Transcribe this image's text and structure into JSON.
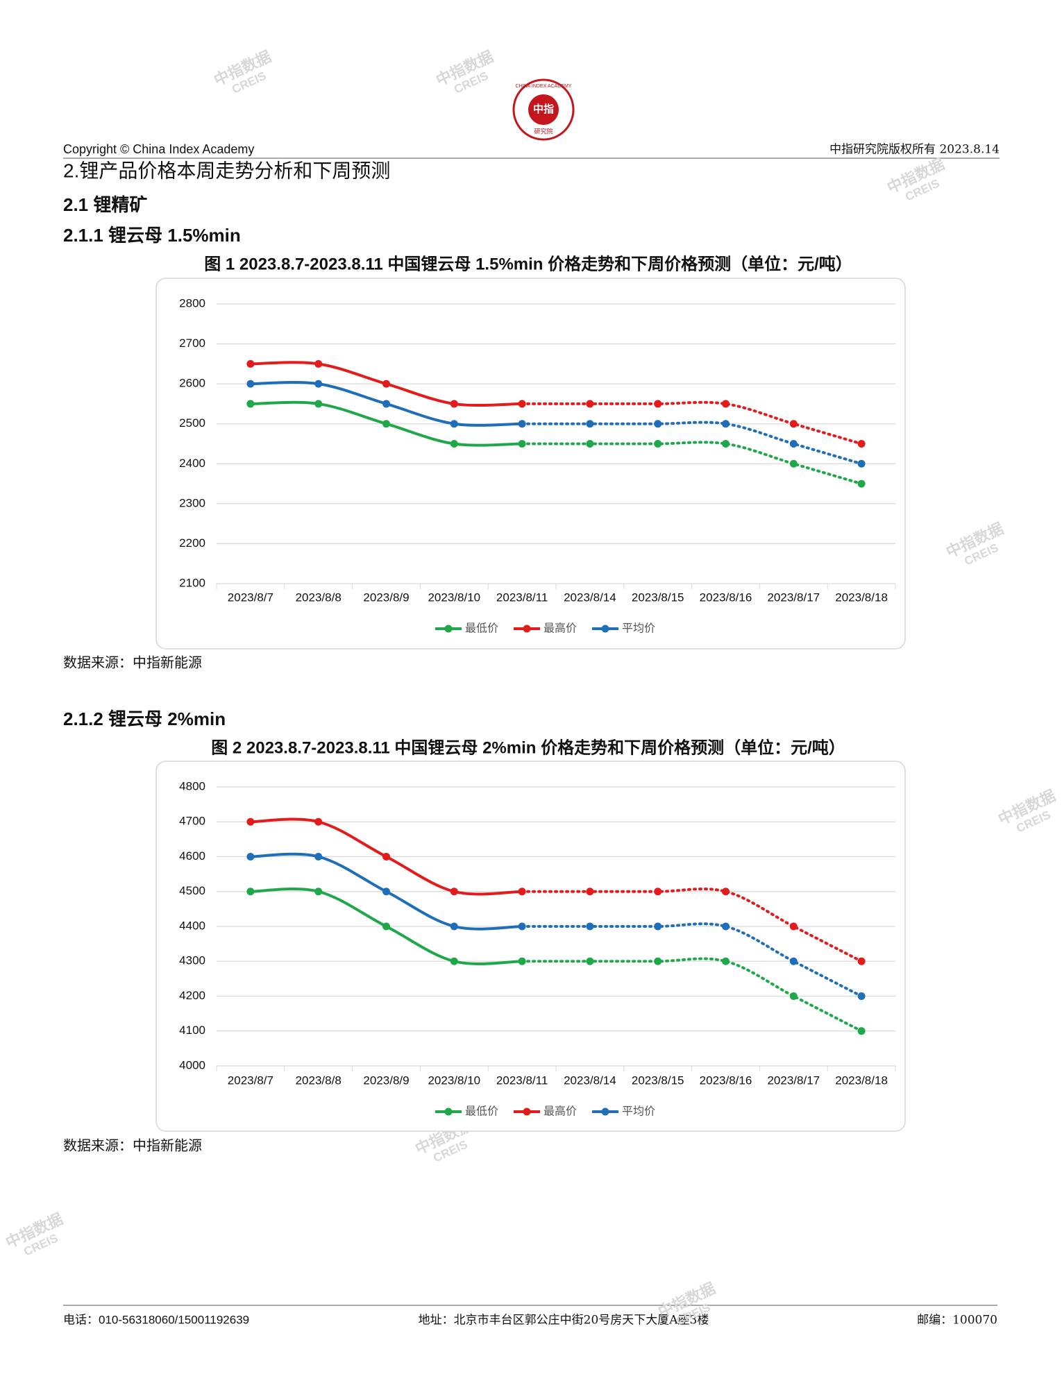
{
  "header": {
    "copyright": "Copyright © China Index Academy",
    "rights": "中指研究院版权所有 2023.8.14"
  },
  "logo": {
    "center": "中指",
    "ring": "CHINA INDEX ACADEMY",
    "bottom": "研究院"
  },
  "watermark": {
    "text": "中指数据",
    "sub": "CREIS"
  },
  "sections": {
    "h2": "2.锂产品价格本周走势分析和下周预测",
    "h21": "2.1 锂精矿",
    "h211": "2.1.1 锂云母 1.5%min",
    "h212": "2.1.2 锂云母 2%min"
  },
  "chart_data": [
    {
      "type": "line",
      "title": "图 1 2023.8.7-2023.8.11 中国锂云母 1.5%min 价格走势和下周价格预测（单位：元/吨）",
      "categories": [
        "2023/8/7",
        "2023/8/8",
        "2023/8/9",
        "2023/8/10",
        "2023/8/11",
        "2023/8/14",
        "2023/8/15",
        "2023/8/16",
        "2023/8/17",
        "2023/8/18"
      ],
      "series": [
        {
          "name": "最低价",
          "color": "#1fa84a",
          "values": [
            2550,
            2550,
            2500,
            2450,
            2450,
            2450,
            2450,
            2450,
            2400,
            2350
          ]
        },
        {
          "name": "最高价",
          "color": "#e31b1b",
          "values": [
            2650,
            2650,
            2600,
            2550,
            2550,
            2550,
            2550,
            2550,
            2500,
            2450
          ]
        },
        {
          "name": "平均价",
          "color": "#1f6fb8",
          "values": [
            2600,
            2600,
            2550,
            2500,
            2500,
            2500,
            2500,
            2500,
            2450,
            2400
          ]
        }
      ],
      "dotted_from_index": 4,
      "ylim": [
        2100,
        2800
      ],
      "yticks": [
        2100,
        2200,
        2300,
        2400,
        2500,
        2600,
        2700,
        2800
      ],
      "grid": true,
      "legend": "bottom",
      "source": "数据来源：中指新能源"
    },
    {
      "type": "line",
      "title": "图 2 2023.8.7-2023.8.11 中国锂云母 2%min 价格走势和下周价格预测（单位：元/吨）",
      "categories": [
        "2023/8/7",
        "2023/8/8",
        "2023/8/9",
        "2023/8/10",
        "2023/8/11",
        "2023/8/14",
        "2023/8/15",
        "2023/8/16",
        "2023/8/17",
        "2023/8/18"
      ],
      "series": [
        {
          "name": "最低价",
          "color": "#1fa84a",
          "values": [
            4500,
            4500,
            4400,
            4300,
            4300,
            4300,
            4300,
            4300,
            4200,
            4100
          ]
        },
        {
          "name": "最高价",
          "color": "#e31b1b",
          "values": [
            4700,
            4700,
            4600,
            4500,
            4500,
            4500,
            4500,
            4500,
            4400,
            4300
          ]
        },
        {
          "name": "平均价",
          "color": "#1f6fb8",
          "values": [
            4600,
            4600,
            4500,
            4400,
            4400,
            4400,
            4400,
            4400,
            4300,
            4200
          ]
        }
      ],
      "dotted_from_index": 4,
      "ylim": [
        4000,
        4800
      ],
      "yticks": [
        4000,
        4100,
        4200,
        4300,
        4400,
        4500,
        4600,
        4700,
        4800
      ],
      "grid": true,
      "legend": "bottom",
      "source": "数据来源：中指新能源"
    }
  ],
  "footer": {
    "phone": "电话：010-56318060/15001192639",
    "address": "地址：北京市丰台区郭公庄中街20号房天下大厦A座3楼",
    "postcode": "邮编：100070"
  }
}
